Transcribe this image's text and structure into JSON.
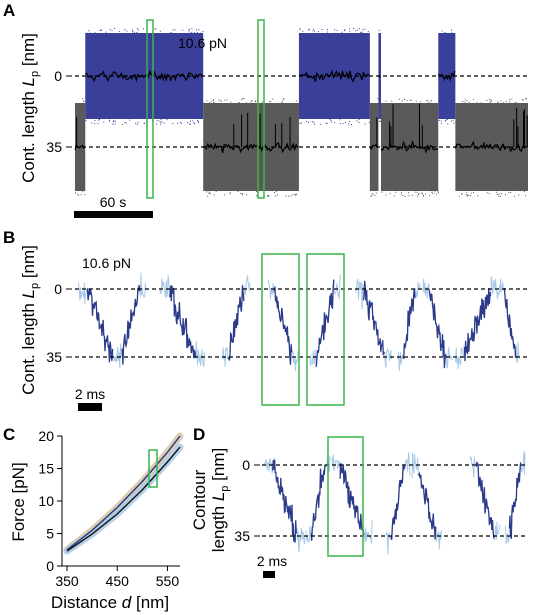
{
  "figure": {
    "panels": [
      {
        "label": "A",
        "ylabel": "Cont. length ",
        "ylabel_sub": "L",
        "ylabel_subsub": "p",
        "ylabel_unit": " [nm]",
        "force_label": "10.6 pN",
        "scalebar_label": "60 s",
        "yticks": [
          "0",
          "35"
        ]
      },
      {
        "label": "B",
        "ylabel": "Cont. length ",
        "ylabel_sub": "L",
        "ylabel_subsub": "p",
        "ylabel_unit": " [nm]",
        "force_label": "10.6 pN",
        "scalebar_label": "2 ms",
        "yticks": [
          "0",
          "35"
        ]
      },
      {
        "label": "C",
        "ylabel": "Force [pN]",
        "xlabel": "Distance ",
        "xlabel_var": "d",
        "xlabel_unit": " [nm]"
      },
      {
        "label": "D",
        "ylabel_line1": "Contour",
        "ylabel_line2": "length ",
        "ylabel_sub": "L",
        "ylabel_subsub": "p",
        "ylabel_unit": " [nm]",
        "scalebar_label": "2 ms",
        "yticks": [
          "0",
          "35"
        ]
      }
    ]
  },
  "chart_data": [
    {
      "panel": "A",
      "type": "line",
      "ylabel": "Cont. length Lp [nm]",
      "ylim": [
        60,
        -30
      ],
      "reference_lines": [
        0,
        35
      ],
      "states": [
        {
          "start": 0,
          "end": 12,
          "level": 35
        },
        {
          "start": 12,
          "end": 150,
          "level": 0
        },
        {
          "start": 150,
          "end": 262,
          "level": 35
        },
        {
          "start": 262,
          "end": 345,
          "level": 0
        },
        {
          "start": 345,
          "end": 355,
          "level": 35
        },
        {
          "start": 355,
          "end": 358,
          "level": 0
        },
        {
          "start": 358,
          "end": 425,
          "level": 35
        },
        {
          "start": 425,
          "end": 445,
          "level": 0
        },
        {
          "start": 445,
          "end": 530,
          "level": 35
        }
      ],
      "colors": {
        "folded": "#3a3f9a",
        "unfolded": "#5a5a5a",
        "mean": "#000000",
        "highlight": "#3cb44b"
      }
    },
    {
      "panel": "B",
      "type": "line",
      "ylabel": "Cont. length Lp [nm]",
      "ylim": [
        50,
        -15
      ],
      "reference_lines": [
        0,
        35
      ],
      "colors": {
        "trace": "#a9c9e6",
        "transition": "#2c3a8a",
        "highlight": "#3cb44b"
      }
    },
    {
      "panel": "C",
      "type": "line",
      "xlabel": "Distance d [nm]",
      "ylabel": "Force [pN]",
      "xlim": [
        340,
        575
      ],
      "ylim": [
        0,
        20
      ],
      "xticks": [
        350,
        450,
        550
      ],
      "yticks": [
        0,
        5,
        10,
        15,
        20
      ],
      "series": [
        {
          "x": [
            350,
            400,
            450,
            500,
            550,
            575
          ],
          "y": [
            2.5,
            5.5,
            9.0,
            13.0,
            17.5,
            20.0
          ]
        },
        {
          "x": [
            350,
            400,
            450,
            500,
            550,
            575
          ],
          "y": [
            2.3,
            4.9,
            8.0,
            11.7,
            16.0,
            18.3
          ]
        }
      ],
      "colors": {
        "band_a": "#d9c3a5",
        "band_b": "#a9c9e6",
        "line_a": "#1f3c88",
        "line_b": "#111111",
        "highlight": "#3cb44b"
      }
    },
    {
      "panel": "D",
      "type": "line",
      "ylabel": "Contour length Lp [nm]",
      "ylim": [
        45,
        -10
      ],
      "reference_lines": [
        0,
        35
      ],
      "colors": {
        "trace": "#a9c9e6",
        "transition": "#2c3a8a",
        "highlight": "#3cb44b"
      }
    }
  ]
}
